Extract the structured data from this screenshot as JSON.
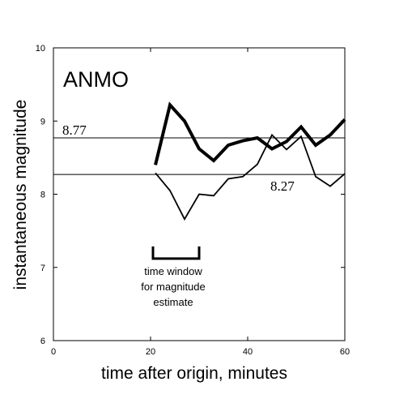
{
  "chart_data": {
    "type": "line",
    "station_label": "ANMO",
    "xlabel": "time after origin, minutes",
    "ylabel": "instantaneous magnitude",
    "xlim": [
      0,
      60
    ],
    "ylim": [
      6,
      10
    ],
    "xticks": [
      0,
      20,
      40,
      60
    ],
    "yticks": [
      6,
      7,
      8,
      9,
      10
    ],
    "grid": false,
    "series": [
      {
        "style": "thick",
        "x": [
          21,
          24,
          27,
          30,
          33,
          36,
          39,
          42,
          45,
          48,
          51,
          54,
          57,
          60
        ],
        "y": [
          8.4,
          9.22,
          9.0,
          8.62,
          8.46,
          8.67,
          8.73,
          8.77,
          8.62,
          8.72,
          8.92,
          8.67,
          8.81,
          9.02
        ]
      },
      {
        "style": "thin",
        "x": [
          21,
          24,
          27,
          30,
          33,
          36,
          39,
          42,
          45,
          48,
          51,
          54,
          57,
          60
        ],
        "y": [
          8.29,
          8.05,
          7.66,
          8.0,
          7.98,
          8.21,
          8.24,
          8.41,
          8.81,
          8.61,
          8.79,
          8.24,
          8.11,
          8.28
        ]
      }
    ],
    "reference_lines": [
      {
        "y": 8.77,
        "label": "8.77"
      },
      {
        "y": 8.27,
        "label": "8.27"
      }
    ],
    "time_window": {
      "x_start": 20.5,
      "x_end": 30,
      "y": 7.12,
      "label_lines": [
        "time window",
        "for magnitude",
        "estimate"
      ]
    }
  }
}
